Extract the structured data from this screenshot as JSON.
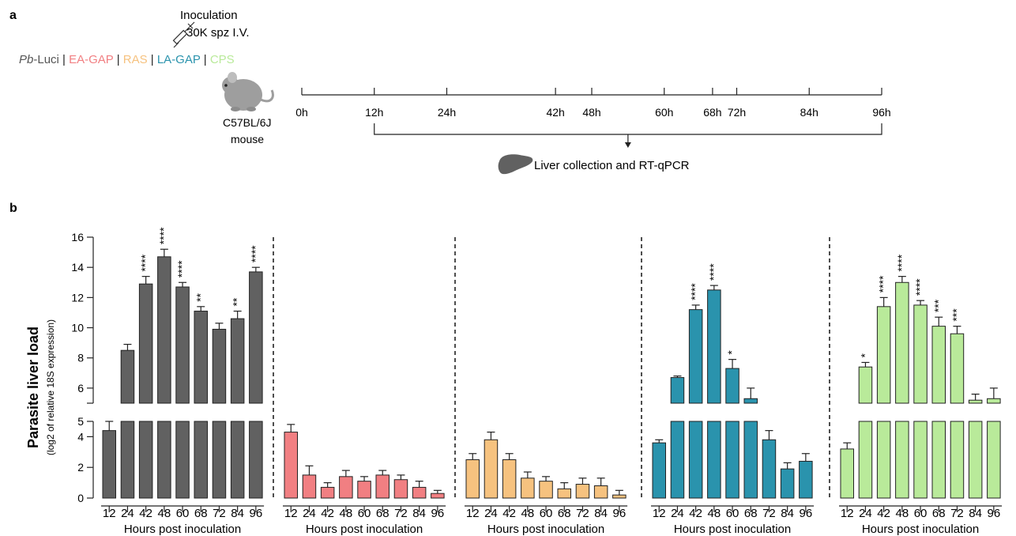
{
  "panel_a": {
    "label": "a",
    "inoculation_line1": "Inoculation",
    "inoculation_line2": "30K spz I.V.",
    "strains_prefix_italic": "Pb",
    "strains": [
      {
        "text": "-Luci",
        "color": "#555555"
      },
      {
        "text": " | ",
        "color": "#222222"
      },
      {
        "text": "EA-GAP",
        "color": "#f17f82"
      },
      {
        "text": " | ",
        "color": "#222222"
      },
      {
        "text": "RAS",
        "color": "#f6c27f"
      },
      {
        "text": " | ",
        "color": "#222222"
      },
      {
        "text": "LA-GAP",
        "color": "#2a93ad"
      },
      {
        "text": " | ",
        "color": "#222222"
      },
      {
        "text": "CPS",
        "color": "#b9ea9a"
      }
    ],
    "mouse_line1": "C57BL/6J",
    "mouse_line2": "mouse",
    "timeline_ticks": [
      "0h",
      "12h",
      "24h",
      "42h",
      "48h",
      "60h",
      "68h",
      "72h",
      "84h",
      "96h"
    ],
    "timeline_hours": [
      0,
      12,
      24,
      42,
      48,
      60,
      68,
      72,
      84,
      96
    ],
    "collection_label": "Liver collection and RT-qPCR",
    "icons": [
      "syringe-icon",
      "mouse-icon",
      "liver-icon"
    ]
  },
  "panel_b": {
    "label": "b"
  },
  "chart_data": {
    "type": "bar",
    "ylabel": "Parasite liver load",
    "ylabel_sub": "(log2 of relative 18S expression)",
    "xlabel": "Hours post inoculation",
    "y_ticks": [
      0,
      2,
      4,
      5,
      6,
      8,
      10,
      12,
      14,
      16
    ],
    "y_axis_break": [
      5,
      5
    ],
    "ylim": [
      0,
      16
    ],
    "grid": false,
    "categories": [
      "12",
      "24",
      "42",
      "48",
      "60",
      "68",
      "72",
      "84",
      "96"
    ],
    "series": [
      {
        "name": "Pb-Luci",
        "color": "#616161",
        "values": [
          4.4,
          8.5,
          12.9,
          14.7,
          12.7,
          11.1,
          9.9,
          10.6,
          13.7
        ],
        "errors": [
          0.6,
          0.4,
          0.5,
          0.5,
          0.3,
          0.3,
          0.4,
          0.5,
          0.3
        ],
        "stars": [
          "",
          "",
          "****",
          "****",
          "****",
          "**",
          "",
          "**",
          "****"
        ]
      },
      {
        "name": "EA-GAP",
        "color": "#f17f82",
        "values": [
          4.3,
          1.5,
          0.7,
          1.4,
          1.1,
          1.5,
          1.2,
          0.7,
          0.3
        ],
        "errors": [
          0.5,
          0.6,
          0.3,
          0.4,
          0.3,
          0.3,
          0.3,
          0.4,
          0.2
        ],
        "stars": [
          "",
          "",
          "",
          "",
          "",
          "",
          "",
          "",
          ""
        ]
      },
      {
        "name": "RAS",
        "color": "#f6c27f",
        "values": [
          2.5,
          3.8,
          2.5,
          1.3,
          1.1,
          0.6,
          0.9,
          0.8,
          0.2
        ],
        "errors": [
          0.4,
          0.5,
          0.4,
          0.4,
          0.3,
          0.4,
          0.4,
          0.5,
          0.3
        ],
        "stars": [
          "",
          "",
          "",
          "",
          "",
          "",
          "",
          "",
          ""
        ]
      },
      {
        "name": "LA-GAP",
        "color": "#2a93ad",
        "values": [
          3.6,
          6.7,
          11.2,
          12.5,
          7.3,
          5.3,
          3.8,
          1.9,
          2.4
        ],
        "errors": [
          0.2,
          0.1,
          0.3,
          0.3,
          0.6,
          0.7,
          0.6,
          0.4,
          0.5
        ],
        "stars": [
          "",
          "",
          "****",
          "****",
          "*",
          "",
          "",
          "",
          ""
        ]
      },
      {
        "name": "CPS",
        "color": "#b9ea9a",
        "values": [
          3.2,
          7.4,
          11.4,
          13.0,
          11.5,
          10.1,
          9.6,
          5.2,
          5.3
        ],
        "errors": [
          0.4,
          0.3,
          0.6,
          0.4,
          0.3,
          0.6,
          0.5,
          0.4,
          0.7
        ],
        "stars": [
          "",
          "*",
          "****",
          "****",
          "****",
          "***",
          "***",
          "",
          ""
        ]
      }
    ]
  }
}
